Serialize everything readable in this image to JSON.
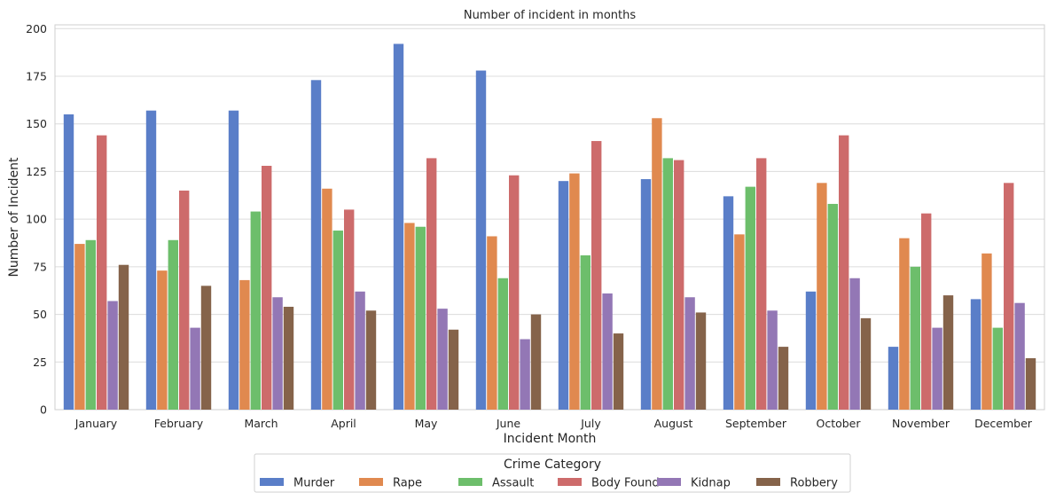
{
  "chart_data": {
    "type": "bar",
    "title": "Number of incident in months",
    "xlabel": "Incident Month",
    "ylabel": "Number of Incident",
    "ylim": [
      0,
      202
    ],
    "yticks": [
      0,
      25,
      50,
      75,
      100,
      125,
      150,
      175,
      200
    ],
    "grid": true,
    "legend_title": "Crime Category",
    "legend_position": "bottom-center",
    "categories": [
      "January",
      "February",
      "March",
      "April",
      "May",
      "June",
      "July",
      "August",
      "September",
      "October",
      "November",
      "December"
    ],
    "series": [
      {
        "name": "Murder",
        "color": "#5a7ec8",
        "values": [
          155,
          157,
          157,
          173,
          192,
          178,
          120,
          121,
          112,
          62,
          33,
          58
        ]
      },
      {
        "name": "Rape",
        "color": "#e0894f",
        "values": [
          87,
          73,
          68,
          116,
          98,
          91,
          124,
          153,
          92,
          119,
          90,
          82
        ]
      },
      {
        "name": "Assault",
        "color": "#6dbe6b",
        "values": [
          89,
          89,
          104,
          94,
          96,
          69,
          81,
          132,
          117,
          108,
          75,
          43
        ]
      },
      {
        "name": "Body Found",
        "color": "#cd6b6b",
        "values": [
          144,
          115,
          128,
          105,
          132,
          123,
          141,
          131,
          132,
          144,
          103,
          119
        ]
      },
      {
        "name": "Kidnap",
        "color": "#9377b5",
        "values": [
          57,
          43,
          59,
          62,
          53,
          37,
          61,
          59,
          52,
          69,
          43,
          56
        ]
      },
      {
        "name": "Robbery",
        "color": "#85634a",
        "values": [
          76,
          65,
          54,
          52,
          42,
          50,
          40,
          51,
          33,
          48,
          60,
          27
        ]
      }
    ]
  }
}
